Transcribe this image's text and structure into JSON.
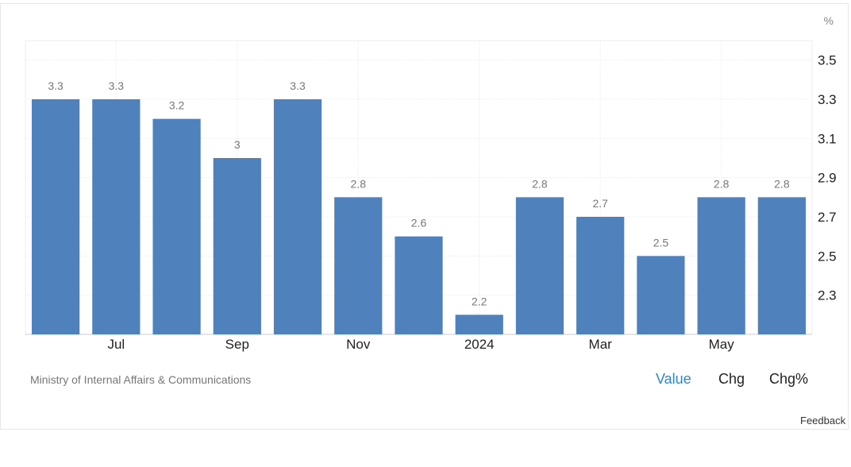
{
  "chart_data": {
    "type": "bar",
    "unit": "%",
    "categories": [
      "",
      "Jul",
      "",
      "Sep",
      "",
      "Nov",
      "",
      "2024",
      "",
      "Mar",
      "",
      "May",
      ""
    ],
    "values": [
      3.3,
      3.3,
      3.2,
      3.0,
      3.3,
      2.8,
      2.6,
      2.2,
      2.8,
      2.7,
      2.5,
      2.8,
      2.8
    ],
    "value_labels": [
      "3.3",
      "3.3",
      "3.2",
      "3",
      "3.3",
      "2.8",
      "2.6",
      "2.2",
      "2.8",
      "2.7",
      "2.5",
      "2.8",
      "2.8"
    ],
    "y_ticks": [
      2.3,
      2.5,
      2.7,
      2.9,
      3.1,
      3.3,
      3.5
    ],
    "y_tick_labels": [
      "2.3",
      "2.5",
      "2.7",
      "2.9",
      "3.1",
      "3.3",
      "3.5"
    ],
    "ylim": [
      2.1,
      3.6
    ],
    "bar_color": "#4f81bd",
    "grid": true,
    "y_axis_side": "right"
  },
  "source": "Ministry of Internal Affairs & Communications",
  "tabs": [
    {
      "label": "Value",
      "active": true
    },
    {
      "label": "Chg",
      "active": false
    },
    {
      "label": "Chg%",
      "active": false
    }
  ],
  "feedback": "Feedback",
  "colors": {
    "accent": "#2f86c9",
    "bar": "#4f81bd"
  }
}
